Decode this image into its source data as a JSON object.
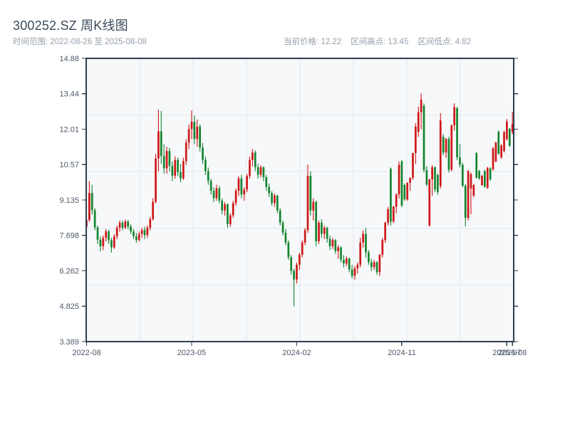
{
  "header": {
    "title": "300252.SZ 周K线图",
    "time_range": "时间范围: 2022-08-26 至 2025-08-08",
    "stats": [
      {
        "label": "当前价格",
        "value": "12.22"
      },
      {
        "label": "区间高点",
        "value": "13.45"
      },
      {
        "label": "区间低点",
        "value": "4.82"
      }
    ]
  },
  "chart_data": {
    "type": "candlestick",
    "title": "300252.SZ 周K线图",
    "frequency": "weekly",
    "date_start": "2022-08-26",
    "date_end": "2025-08-08",
    "current_price": 12.22,
    "range_high": 13.45,
    "range_low": 4.82,
    "ylim": [
      3.389,
      14.88
    ],
    "y_ticks": [
      {
        "v": 14.88,
        "label": "14.88"
      },
      {
        "v": 13.444,
        "label": "13.44"
      },
      {
        "v": 12.007,
        "label": "12.01"
      },
      {
        "v": 10.571,
        "label": "10.57"
      },
      {
        "v": 9.135,
        "label": "9.135"
      },
      {
        "v": 7.698,
        "label": "7.698"
      },
      {
        "v": 6.262,
        "label": "6.262"
      },
      {
        "v": 4.825,
        "label": "4.825"
      },
      {
        "v": 3.389,
        "label": "3.389"
      }
    ],
    "x_ticks": [
      {
        "week": 0,
        "label": "2022-08"
      },
      {
        "week": 38,
        "label": "2023-05"
      },
      {
        "week": 76,
        "label": "2024-02"
      },
      {
        "week": 114,
        "label": "2024-11"
      },
      {
        "week": 152,
        "label": "2025-07"
      },
      {
        "week": 154,
        "label": "2025-08"
      }
    ],
    "grid": {
      "h_divisions": 5,
      "v_divisions": 8
    },
    "colors": {
      "up": "#cf1717",
      "down": "#15842e",
      "spine": "#2e3d52",
      "grid": "#e3e8ee",
      "plot_bg": "#f6f8fa",
      "tick_label": "#4d5a6a"
    },
    "ohlc_order": [
      "open",
      "high",
      "low",
      "close"
    ],
    "candles": [
      [
        8.05,
        8.4,
        7.95,
        8.32
      ],
      [
        8.32,
        9.9,
        8.25,
        9.42
      ],
      [
        9.42,
        9.75,
        8.55,
        8.72
      ],
      [
        8.72,
        8.8,
        7.9,
        8.02
      ],
      [
        8.02,
        8.1,
        7.35,
        7.52
      ],
      [
        7.52,
        7.65,
        7.05,
        7.26
      ],
      [
        7.26,
        7.7,
        7.1,
        7.6
      ],
      [
        7.6,
        7.95,
        7.45,
        7.86
      ],
      [
        7.86,
        7.92,
        7.35,
        7.5
      ],
      [
        7.5,
        7.6,
        7.0,
        7.21
      ],
      [
        7.21,
        7.75,
        7.15,
        7.66
      ],
      [
        7.66,
        8.1,
        7.55,
        8.01
      ],
      [
        8.01,
        8.3,
        7.85,
        8.21
      ],
      [
        8.21,
        8.3,
        7.9,
        8.01
      ],
      [
        8.01,
        8.35,
        7.95,
        8.26
      ],
      [
        8.26,
        8.32,
        7.95,
        8.06
      ],
      [
        8.06,
        8.15,
        7.75,
        7.86
      ],
      [
        7.86,
        7.95,
        7.55,
        7.66
      ],
      [
        7.66,
        7.8,
        7.4,
        7.51
      ],
      [
        7.51,
        7.85,
        7.45,
        7.76
      ],
      [
        7.76,
        8.0,
        7.6,
        7.91
      ],
      [
        7.91,
        8.05,
        7.55,
        7.71
      ],
      [
        7.71,
        8.1,
        7.6,
        8.01
      ],
      [
        8.01,
        8.45,
        7.9,
        8.36
      ],
      [
        8.36,
        9.2,
        8.3,
        9.06
      ],
      [
        9.06,
        11.0,
        9.0,
        10.82
      ],
      [
        10.82,
        12.8,
        10.3,
        11.92
      ],
      [
        11.92,
        12.75,
        10.6,
        10.92
      ],
      [
        10.92,
        11.4,
        10.2,
        10.42
      ],
      [
        10.42,
        11.3,
        10.2,
        11.12
      ],
      [
        11.12,
        11.25,
        10.3,
        10.52
      ],
      [
        10.52,
        10.7,
        9.9,
        10.12
      ],
      [
        10.12,
        10.9,
        10.0,
        10.76
      ],
      [
        10.76,
        10.85,
        10.1,
        10.26
      ],
      [
        10.26,
        10.6,
        9.85,
        10.01
      ],
      [
        10.01,
        10.85,
        9.95,
        10.71
      ],
      [
        10.71,
        11.6,
        10.55,
        11.46
      ],
      [
        11.46,
        12.2,
        11.2,
        12.01
      ],
      [
        12.01,
        12.77,
        11.6,
        12.31
      ],
      [
        12.31,
        12.55,
        11.4,
        11.61
      ],
      [
        11.61,
        12.4,
        11.3,
        12.11
      ],
      [
        12.11,
        12.2,
        11.1,
        11.26
      ],
      [
        11.26,
        11.45,
        10.6,
        10.76
      ],
      [
        10.76,
        10.9,
        10.15,
        10.31
      ],
      [
        10.31,
        10.45,
        9.75,
        9.91
      ],
      [
        9.91,
        10.0,
        9.35,
        9.51
      ],
      [
        9.51,
        9.65,
        9.05,
        9.21
      ],
      [
        9.21,
        9.75,
        9.1,
        9.61
      ],
      [
        9.61,
        9.7,
        9.0,
        9.11
      ],
      [
        9.11,
        9.2,
        8.55,
        8.71
      ],
      [
        8.71,
        9.05,
        8.5,
        8.96
      ],
      [
        8.96,
        9.0,
        8.0,
        8.16
      ],
      [
        8.16,
        8.6,
        8.05,
        8.51
      ],
      [
        8.51,
        9.1,
        8.4,
        9.01
      ],
      [
        9.01,
        9.6,
        8.9,
        9.51
      ],
      [
        9.51,
        10.1,
        9.3,
        10.01
      ],
      [
        10.01,
        10.15,
        9.2,
        9.36
      ],
      [
        9.36,
        9.65,
        9.1,
        9.56
      ],
      [
        9.56,
        10.2,
        9.45,
        10.11
      ],
      [
        10.11,
        10.9,
        10.0,
        10.76
      ],
      [
        10.76,
        11.2,
        10.5,
        11.06
      ],
      [
        11.06,
        11.15,
        10.3,
        10.46
      ],
      [
        10.46,
        10.6,
        10.0,
        10.16
      ],
      [
        10.16,
        10.55,
        10.05,
        10.46
      ],
      [
        10.46,
        10.5,
        9.9,
        10.06
      ],
      [
        10.06,
        10.15,
        9.5,
        9.66
      ],
      [
        9.66,
        9.8,
        9.25,
        9.41
      ],
      [
        9.41,
        9.5,
        8.9,
        9.01
      ],
      [
        9.01,
        9.4,
        8.85,
        9.31
      ],
      [
        9.31,
        9.35,
        8.6,
        8.71
      ],
      [
        8.71,
        8.8,
        8.1,
        8.21
      ],
      [
        8.21,
        8.3,
        7.7,
        7.81
      ],
      [
        7.81,
        7.95,
        7.3,
        7.41
      ],
      [
        7.41,
        7.5,
        6.7,
        6.81
      ],
      [
        6.81,
        6.9,
        6.1,
        6.26
      ],
      [
        6.26,
        6.35,
        4.82,
        5.91
      ],
      [
        5.91,
        6.6,
        5.75,
        6.51
      ],
      [
        6.51,
        7.0,
        6.3,
        6.91
      ],
      [
        6.91,
        7.5,
        6.8,
        7.41
      ],
      [
        7.41,
        8.0,
        7.3,
        7.91
      ],
      [
        7.91,
        10.57,
        7.8,
        10.11
      ],
      [
        10.11,
        10.3,
        8.5,
        8.71
      ],
      [
        8.71,
        9.2,
        8.3,
        9.06
      ],
      [
        9.06,
        9.1,
        7.25,
        7.46
      ],
      [
        7.46,
        8.3,
        7.35,
        8.21
      ],
      [
        8.21,
        8.35,
        7.6,
        7.76
      ],
      [
        7.76,
        8.1,
        7.55,
        8.01
      ],
      [
        8.01,
        8.05,
        7.4,
        7.56
      ],
      [
        7.56,
        7.7,
        7.1,
        7.26
      ],
      [
        7.26,
        7.6,
        7.15,
        7.51
      ],
      [
        7.51,
        7.55,
        6.95,
        7.06
      ],
      [
        7.06,
        7.3,
        6.75,
        7.21
      ],
      [
        7.21,
        7.25,
        6.6,
        6.71
      ],
      [
        6.71,
        6.9,
        6.4,
        6.56
      ],
      [
        6.56,
        6.85,
        6.45,
        6.76
      ],
      [
        6.76,
        6.8,
        6.2,
        6.31
      ],
      [
        6.31,
        6.5,
        5.95,
        6.06
      ],
      [
        6.06,
        6.45,
        5.9,
        6.36
      ],
      [
        6.36,
        6.6,
        6.15,
        6.51
      ],
      [
        6.51,
        7.6,
        6.4,
        7.41
      ],
      [
        7.41,
        7.9,
        7.2,
        7.76
      ],
      [
        7.76,
        8.0,
        6.8,
        7.01
      ],
      [
        7.01,
        7.1,
        6.5,
        6.61
      ],
      [
        6.61,
        6.75,
        6.25,
        6.41
      ],
      [
        6.41,
        6.7,
        6.3,
        6.61
      ],
      [
        6.61,
        6.65,
        6.1,
        6.21
      ],
      [
        6.21,
        6.95,
        6.05,
        6.91
      ],
      [
        6.91,
        7.6,
        6.8,
        7.51
      ],
      [
        7.51,
        8.25,
        7.4,
        8.21
      ],
      [
        8.21,
        8.85,
        8.1,
        8.76
      ],
      [
        10.4,
        10.45,
        8.1,
        8.26
      ],
      [
        8.26,
        8.9,
        8.2,
        8.86
      ],
      [
        8.86,
        9.4,
        8.6,
        9.36
      ],
      [
        9.36,
        10.7,
        9.2,
        10.56
      ],
      [
        10.7,
        10.75,
        8.85,
        8.91
      ],
      [
        9.74,
        9.8,
        9.1,
        9.16
      ],
      [
        9.16,
        9.85,
        9.1,
        9.83
      ],
      [
        9.83,
        10.05,
        9.5,
        10.03
      ],
      [
        10.03,
        11.05,
        9.95,
        11.04
      ],
      [
        11.04,
        12.25,
        10.6,
        12.11
      ],
      [
        11.9,
        12.92,
        11.7,
        12.7
      ],
      [
        12.7,
        13.45,
        12.0,
        13.2
      ],
      [
        12.95,
        13.05,
        10.25,
        10.35
      ],
      [
        10.35,
        10.5,
        9.7,
        9.76
      ],
      [
        8.1,
        10.0,
        8.05,
        9.97
      ],
      [
        9.97,
        10.55,
        9.3,
        10.46
      ],
      [
        10.46,
        10.5,
        9.45,
        9.56
      ],
      [
        10.15,
        10.2,
        9.35,
        9.46
      ],
      [
        9.7,
        12.66,
        9.6,
        12.36
      ],
      [
        11.7,
        11.8,
        10.95,
        11.06
      ],
      [
        11.06,
        11.65,
        10.85,
        11.61
      ],
      [
        11.61,
        11.7,
        10.25,
        10.36
      ],
      [
        10.36,
        12.2,
        10.3,
        12.16
      ],
      [
        12.16,
        13.06,
        11.95,
        12.91
      ],
      [
        12.86,
        12.92,
        10.75,
        10.86
      ],
      [
        10.86,
        11.4,
        10.45,
        10.56
      ],
      [
        10.56,
        10.65,
        9.65,
        9.71
      ],
      [
        9.71,
        9.78,
        8.06,
        8.41
      ],
      [
        8.41,
        10.35,
        8.3,
        10.3
      ],
      [
        9.6,
        10.25,
        8.55,
        10.18
      ],
      [
        9.31,
        9.78,
        9.25,
        9.74
      ],
      [
        11.04,
        11.08,
        10.0,
        10.04
      ],
      [
        10.31,
        10.36,
        9.95,
        10.01
      ],
      [
        9.74,
        10.16,
        9.7,
        10.11
      ],
      [
        10.31,
        10.36,
        9.62,
        9.68
      ],
      [
        9.63,
        10.48,
        9.58,
        10.44
      ],
      [
        10.41,
        10.46,
        9.91,
        9.97
      ],
      [
        10.38,
        11.28,
        10.32,
        11.23
      ],
      [
        10.7,
        11.5,
        10.66,
        11.46
      ],
      [
        11.9,
        11.96,
        10.96,
        11.02
      ],
      [
        10.86,
        11.4,
        10.81,
        11.35
      ],
      [
        11.12,
        11.94,
        11.06,
        11.89
      ],
      [
        11.6,
        12.42,
        11.55,
        12.32
      ],
      [
        12.02,
        12.06,
        11.28,
        11.34
      ],
      [
        11.9,
        12.71,
        11.8,
        12.22
      ]
    ]
  }
}
